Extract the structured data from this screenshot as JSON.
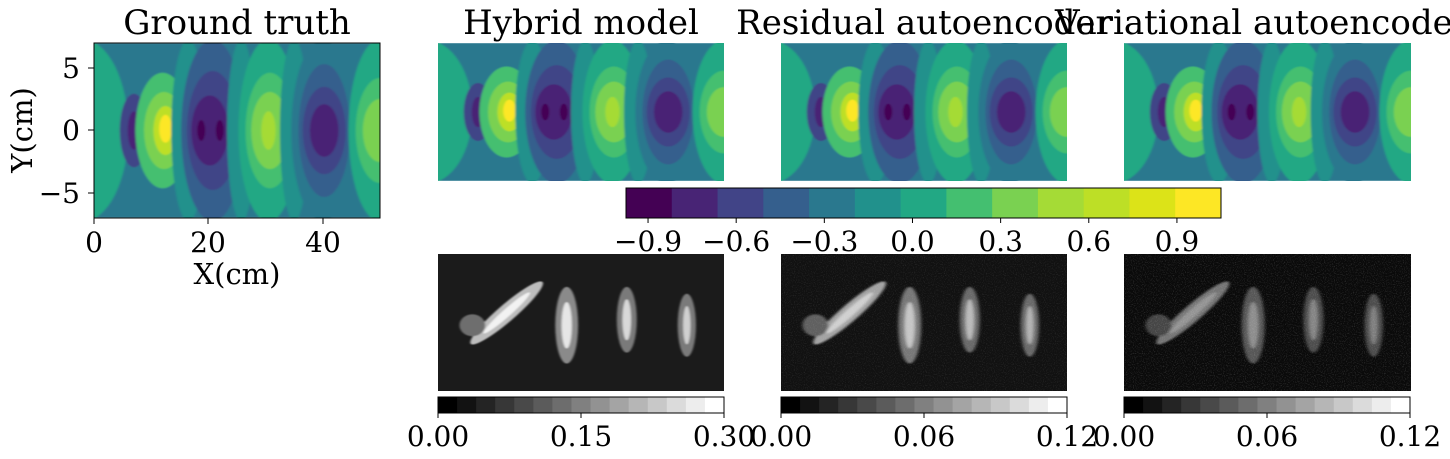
{
  "chart_data": [
    {
      "type": "heatmap",
      "title": "Ground truth",
      "xlabel": "X(cm)",
      "ylabel": "Y(cm)",
      "xlim": [
        0,
        50
      ],
      "ylim": [
        -7,
        7
      ],
      "xticks": [
        "0",
        "20",
        "40"
      ],
      "yticks": [
        "5",
        "0",
        "−5"
      ],
      "colormap": "viridis"
    },
    {
      "type": "heatmap",
      "title": "Hybrid model",
      "colormap": "viridis"
    },
    {
      "type": "heatmap",
      "title": "Residual autoencoder",
      "colormap": "viridis"
    },
    {
      "type": "heatmap",
      "title": "Variational autoencoder",
      "colormap": "viridis"
    },
    {
      "type": "colorbar",
      "range": [
        -0.975,
        1.05
      ],
      "ticks": [
        "−0.9",
        "−0.6",
        "−0.3",
        "0.0",
        "0.3",
        "0.6",
        "0.9"
      ],
      "tick_values": [
        -0.9,
        -0.6,
        -0.3,
        0.0,
        0.3,
        0.6,
        0.9
      ],
      "levels": 13,
      "colors": [
        "#440154",
        "#482475",
        "#414487",
        "#355f8d",
        "#2a788e",
        "#21918c",
        "#22a884",
        "#44bf70",
        "#7ad151",
        "#a5db36",
        "#bddf26",
        "#dce318",
        "#fde725"
      ]
    },
    {
      "type": "heatmap",
      "title": "",
      "colormap": "gray",
      "cbar_range": [
        0,
        0.3
      ],
      "cbar_ticks": [
        "0.00",
        "0.15",
        "0.30"
      ]
    },
    {
      "type": "heatmap",
      "title": "",
      "colormap": "gray",
      "cbar_range": [
        0,
        0.12
      ],
      "cbar_ticks": [
        "0.00",
        "0.06",
        "0.12"
      ]
    },
    {
      "type": "heatmap",
      "title": "",
      "colormap": "gray",
      "cbar_range": [
        0,
        0.12
      ],
      "cbar_ticks": [
        "0.00",
        "0.06",
        "0.12"
      ]
    }
  ]
}
